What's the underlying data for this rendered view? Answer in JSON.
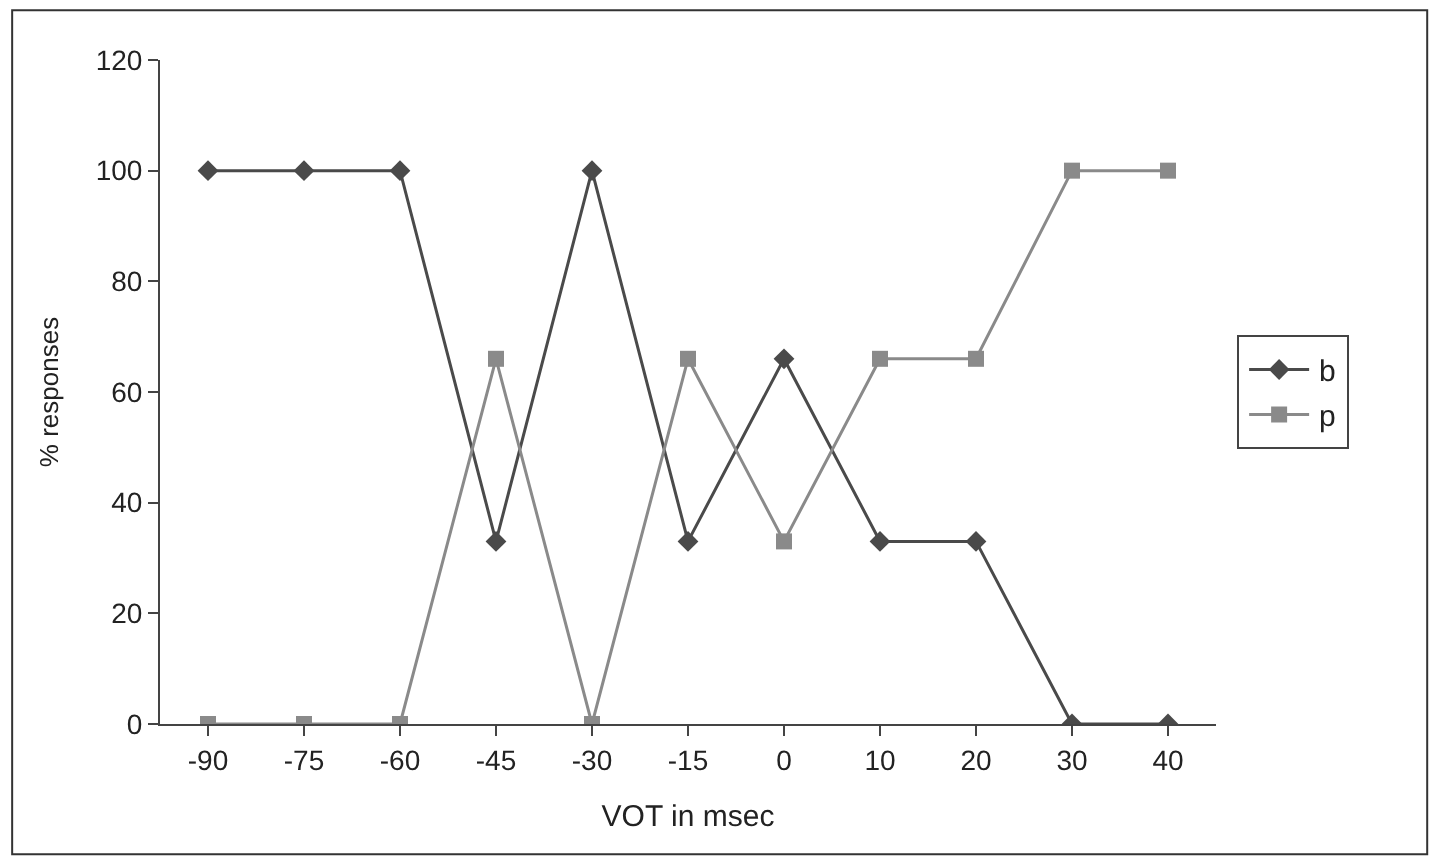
{
  "chart_data": {
    "type": "line",
    "xlabel": "VOT in msec",
    "ylabel": "% responses",
    "categories": [
      "-90",
      "-75",
      "-60",
      "-45",
      "-30",
      "-15",
      "0",
      "10",
      "20",
      "30",
      "40"
    ],
    "series": [
      {
        "name": "b",
        "color": "#4a4a4a",
        "marker": "diamond",
        "values": [
          100,
          100,
          100,
          33,
          100,
          33,
          66,
          33,
          33,
          0,
          0
        ]
      },
      {
        "name": "p",
        "color": "#8a8a8a",
        "marker": "square",
        "values": [
          0,
          0,
          0,
          66,
          0,
          66,
          33,
          66,
          66,
          100,
          100
        ]
      }
    ],
    "ylim": [
      0,
      120
    ],
    "yticks": [
      0,
      20,
      40,
      60,
      80,
      100,
      120
    ],
    "legend": "right",
    "line_style": "solid"
  }
}
